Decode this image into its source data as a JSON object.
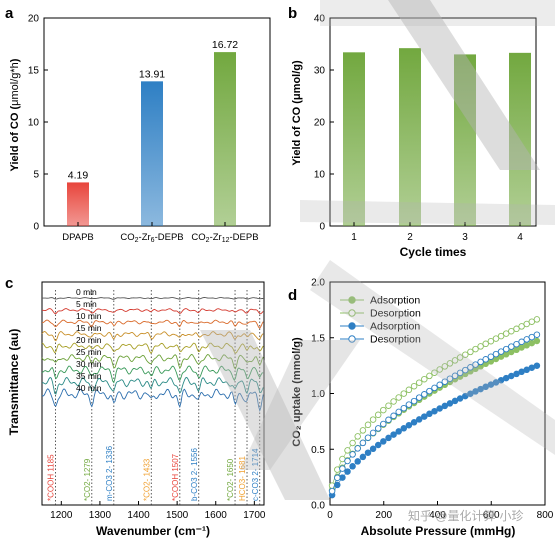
{
  "panels": {
    "a": {
      "label": "a",
      "ylabel": "Yield of CO (μmol/g*h)",
      "ylabel_main": "Yield of CO (",
      "ylabel_unit": "μmol/g*h",
      "ylabel_close": ")"
    },
    "b": {
      "label": "b",
      "ylabel": "Yield of CO (μmol/g)",
      "xlabel": "Cycle times"
    },
    "c": {
      "label": "c",
      "ylabel": "Transmittance (au)",
      "xlabel": "Wavenumber (cm⁻¹)"
    },
    "d": {
      "label": "d",
      "ylabel": "CO₂ uptake (mmol/g)",
      "xlabel": "Absolute Pressure (mmHg)"
    }
  },
  "watermark": "知乎 @量化计算-小珍",
  "colors": {
    "red": "#e8453c",
    "blue": "#2e7fc4",
    "green": "#72a83f",
    "lightgreen": "#8dc063",
    "watermark": "#b4b4b4"
  },
  "chart_data": [
    {
      "panel": "a",
      "type": "bar",
      "categories": [
        "DPAPB",
        "CO2-Zr6-DEPB",
        "CO2-Zr12-DEPB"
      ],
      "category_labels": [
        {
          "main": "DPAPB",
          "parts": []
        },
        {
          "parts": [
            [
              "CO",
              "n"
            ],
            [
              "2",
              "sub"
            ],
            [
              "-Zr",
              "n"
            ],
            [
              "6",
              "sub"
            ],
            [
              "-DEPB",
              "n"
            ]
          ]
        },
        {
          "parts": [
            [
              "CO",
              "n"
            ],
            [
              "2",
              "sub"
            ],
            [
              "-Zr",
              "n"
            ],
            [
              "12",
              "sub"
            ],
            [
              "-DEPB",
              "n"
            ]
          ]
        }
      ],
      "values": [
        4.19,
        13.91,
        16.72
      ],
      "value_labels": [
        "4.19",
        "13.91",
        "16.72"
      ],
      "colors": [
        "#e8453c",
        "#2e7fc4",
        "#72a83f"
      ],
      "ylim": [
        0,
        20
      ],
      "yticks": [
        0,
        5,
        10,
        15,
        20
      ]
    },
    {
      "panel": "b",
      "type": "bar",
      "categories": [
        "1",
        "2",
        "3",
        "4"
      ],
      "values": [
        33.4,
        34.2,
        33.0,
        33.3
      ],
      "color": "#72a83f",
      "ylim": [
        0,
        40
      ],
      "yticks": [
        0,
        10,
        20,
        30,
        40
      ],
      "xlabel": "Cycle times"
    },
    {
      "panel": "c",
      "type": "line",
      "xlim": [
        1150,
        1725
      ],
      "xticks": [
        1200,
        1300,
        1400,
        1500,
        1600,
        1700
      ],
      "series": [
        {
          "name": "0 min",
          "color": "#555555"
        },
        {
          "name": "5 min",
          "color": "#d43a2f"
        },
        {
          "name": "10 min",
          "color": "#d96a2a"
        },
        {
          "name": "15 min",
          "color": "#c9902a"
        },
        {
          "name": "20 min",
          "color": "#a8a028"
        },
        {
          "name": "25 min",
          "color": "#6da23a"
        },
        {
          "name": "30 min",
          "color": "#3a9a5a"
        },
        {
          "name": "35 min",
          "color": "#2a8a86"
        },
        {
          "name": "40 min",
          "color": "#2d6fae"
        }
      ],
      "peaks": [
        {
          "x": 1185,
          "text": "*COOH 1185",
          "color": "#e8453c"
        },
        {
          "x": 1279,
          "text": "*CO2- 1279",
          "color": "#72a83f"
        },
        {
          "x": 1336,
          "text": "m-CO3 2- 1336",
          "color": "#2e7fc4"
        },
        {
          "x": 1433,
          "text": "*CO2- 1433",
          "color": "#f0a030"
        },
        {
          "x": 1507,
          "text": "*COOH 1507",
          "color": "#e8453c"
        },
        {
          "x": 1556,
          "text": "b-CO3 2- 1556",
          "color": "#2e7fc4"
        },
        {
          "x": 1650,
          "text": "*CO2- 1650",
          "color": "#72a83f"
        },
        {
          "x": 1681,
          "text": "HCO3- 1681",
          "color": "#f0a030"
        },
        {
          "x": 1714,
          "text": "c-CO3 2- 1714",
          "color": "#2e7fc4"
        }
      ]
    },
    {
      "panel": "d",
      "type": "scatter",
      "xlim": [
        0,
        800
      ],
      "ylim": [
        0.0,
        2.0
      ],
      "xticks": [
        0,
        200,
        400,
        600,
        800
      ],
      "yticks": [
        0.0,
        0.5,
        1.0,
        1.5,
        2.0
      ],
      "legend_position": "top-left",
      "series": [
        {
          "name": "Adsorption",
          "color": "#8dc063",
          "filled": true,
          "k": 0.0443,
          "p": 0.527
        },
        {
          "name": "Desorption",
          "color": "#8dc063",
          "filled": false,
          "k": 0.062,
          "p": 0.495
        },
        {
          "name": "Adsorption",
          "color": "#2e7fc4",
          "filled": true,
          "k": 0.0268,
          "p": 0.578
        },
        {
          "name": "Desorption",
          "color": "#2e7fc4",
          "filled": false,
          "k": 0.04,
          "p": 0.548
        }
      ]
    }
  ]
}
